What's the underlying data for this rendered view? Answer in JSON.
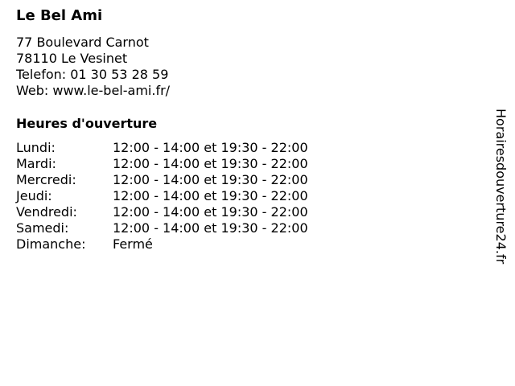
{
  "name": "Le Bel Ami",
  "address": {
    "street": "77 Boulevard Carnot",
    "city": "78110 Le Vesinet",
    "phone": "Telefon: 01 30 53 28 59",
    "web": "Web: www.le-bel-ami.fr/"
  },
  "hours_title": "Heures d'ouverture",
  "hours": [
    {
      "day": "Lundi:",
      "time": "12:00 - 14:00 et 19:30 - 22:00"
    },
    {
      "day": "Mardi:",
      "time": "12:00 - 14:00 et 19:30 - 22:00"
    },
    {
      "day": "Mercredi:",
      "time": "12:00 - 14:00 et 19:30 - 22:00"
    },
    {
      "day": "Jeudi:",
      "time": "12:00 - 14:00 et 19:30 - 22:00"
    },
    {
      "day": "Vendredi:",
      "time": "12:00 - 14:00 et 19:30 - 22:00"
    },
    {
      "day": "Samedi:",
      "time": "12:00 - 14:00 et 19:30 - 22:00"
    },
    {
      "day": "Dimanche:",
      "time": "Fermé"
    }
  ],
  "watermark": "Horairesdouverture24.fr"
}
